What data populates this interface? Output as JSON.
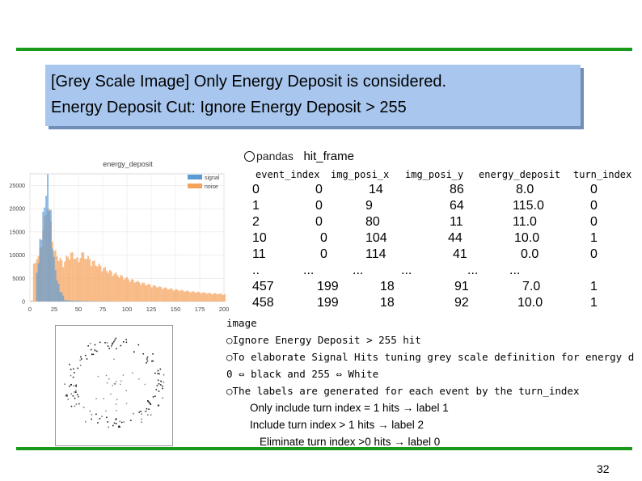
{
  "title": {
    "line1": "[Grey Scale Image] Only Energy Deposit is considered.",
    "line2": "Energy Deposit Cut: Ignore Energy Deposit > 255"
  },
  "histogram": {
    "chart_data": {
      "type": "bar",
      "title": "energy_deposit",
      "legend": [
        "signal",
        "noise"
      ],
      "legend_placement": "top-right",
      "colors": {
        "signal": "#5b9bd5",
        "noise": "#f5a35c"
      },
      "x_ticks": [
        "0",
        "25",
        "50",
        "75",
        "100",
        "125",
        "150",
        "175",
        "200"
      ],
      "y_ticks": [
        "0",
        "5000",
        "10000",
        "15000",
        "20000",
        "25000"
      ],
      "xlim": [
        0,
        200
      ],
      "ylim": [
        0,
        27500
      ]
    }
  },
  "table": {
    "lib": "pandas",
    "name": "hit_frame",
    "columns": [
      "event_index",
      "img_posi_x",
      "img_posi_y",
      "energy_deposit",
      "turn_index"
    ],
    "rows": [
      {
        "idx": "0",
        "event_index": "0",
        "img_posi_x": "14",
        "img_posi_y": "86",
        "energy_deposit": "8.0",
        "turn_index": "0"
      },
      {
        "idx": "1",
        "event_index": "0",
        "img_posi_x": "9",
        "img_posi_y": "64",
        "energy_deposit": "115.0",
        "turn_index": "0"
      },
      {
        "idx": "2",
        "event_index": "0",
        "img_posi_x": "80",
        "img_posi_y": "11",
        "energy_deposit": "11.0",
        "turn_index": "0"
      },
      {
        "idx": "10",
        "event_index": "0",
        "img_posi_x": "104",
        "img_posi_y": "44",
        "energy_deposit": "10.0",
        "turn_index": "1"
      },
      {
        "idx": "11",
        "event_index": "0",
        "img_posi_x": "114",
        "img_posi_y": "41",
        "energy_deposit": "0.0",
        "turn_index": "0"
      },
      {
        "idx": "..",
        "event_index": "...",
        "img_posi_x": "...",
        "img_posi_y": "...",
        "energy_deposit": "...",
        "turn_index": "..."
      },
      {
        "idx": "457",
        "event_index": "199",
        "img_posi_x": "18",
        "img_posi_y": "91",
        "energy_deposit": "7.0",
        "turn_index": "1"
      },
      {
        "idx": "458",
        "event_index": "199",
        "img_posi_x": "18",
        "img_posi_y": "92",
        "energy_deposit": "10.0",
        "turn_index": "1"
      }
    ]
  },
  "notes": {
    "heading": "image",
    "b1": "○Ignore Energy Deposit > 255 hit",
    "b2": "○To elaborate Signal Hits tuning  grey scale definition for energy d",
    "b3": "0 ⇔ black and 255 ⇔ White",
    "b4": "○The labels are generated for each event by the turn_index",
    "s1": "Only include turn index = 1 hits → label 1",
    "s2": "Include turn index > 1 hits → label 2",
    "s3": "Eliminate turn index >0 hits → label 0"
  },
  "page_number": "32"
}
